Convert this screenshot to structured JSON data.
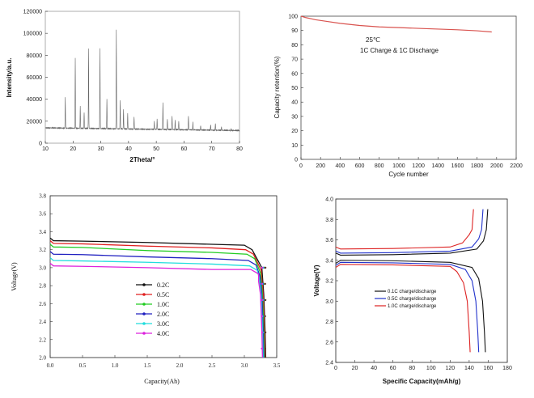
{
  "chart_data": [
    {
      "type": "line",
      "xlabel": "2Theta/°",
      "ylabel": "Intensity/a.u.",
      "xlim": [
        10,
        80
      ],
      "ylim": [
        0,
        120000
      ],
      "xticks": [
        "10",
        "20",
        "30",
        "40",
        "50",
        "60",
        "70",
        "80"
      ],
      "yticks": [
        "0",
        "20000",
        "40000",
        "60000",
        "80000",
        "100000",
        "120000"
      ],
      "baseline_start": 14000,
      "baseline_end": 11500,
      "peaks": [
        {
          "x": 17.2,
          "y": 42000
        },
        {
          "x": 20.8,
          "y": 78000
        },
        {
          "x": 22.6,
          "y": 34000
        },
        {
          "x": 24.0,
          "y": 28000
        },
        {
          "x": 25.6,
          "y": 86000
        },
        {
          "x": 29.7,
          "y": 86000
        },
        {
          "x": 32.2,
          "y": 40000
        },
        {
          "x": 35.6,
          "y": 103000
        },
        {
          "x": 37.0,
          "y": 39000
        },
        {
          "x": 38.2,
          "y": 31000
        },
        {
          "x": 39.7,
          "y": 27000
        },
        {
          "x": 42.0,
          "y": 24000
        },
        {
          "x": 49.3,
          "y": 20000
        },
        {
          "x": 50.3,
          "y": 22000
        },
        {
          "x": 52.4,
          "y": 37000
        },
        {
          "x": 54.0,
          "y": 22000
        },
        {
          "x": 55.7,
          "y": 25000
        },
        {
          "x": 56.8,
          "y": 21000
        },
        {
          "x": 58.1,
          "y": 20000
        },
        {
          "x": 61.6,
          "y": 25000
        },
        {
          "x": 63.2,
          "y": 19000
        },
        {
          "x": 66.0,
          "y": 16000
        },
        {
          "x": 69.6,
          "y": 17000
        },
        {
          "x": 71.3,
          "y": 18000
        },
        {
          "x": 73.5,
          "y": 15000
        },
        {
          "x": 77.0,
          "y": 13500
        }
      ]
    },
    {
      "type": "line",
      "xlabel": "Cycle number",
      "ylabel": "Capacity retention(%)",
      "xlim": [
        0,
        2200
      ],
      "ylim": [
        0,
        100
      ],
      "xticks": [
        "0",
        "200",
        "400",
        "600",
        "800",
        "1000",
        "1200",
        "1400",
        "1600",
        "1800",
        "2000",
        "2200"
      ],
      "yticks": [
        "0",
        "10",
        "20",
        "30",
        "40",
        "50",
        "60",
        "70",
        "80",
        "90",
        "100"
      ],
      "annotation_temp": "25℃",
      "annotation_rate": "1C Charge & 1C Discharge",
      "series": [
        {
          "x": [
            0,
            50,
            150,
            250,
            400,
            600,
            800,
            1000,
            1200,
            1400,
            1600,
            1800,
            1950
          ],
          "y": [
            100,
            99,
            97.5,
            96.5,
            95,
            93.5,
            92.5,
            92,
            91.5,
            91,
            90.5,
            89.8,
            89
          ]
        }
      ]
    },
    {
      "type": "line",
      "xlabel": "Capacity(Ah)",
      "ylabel": "Voltage(V)",
      "xlim": [
        0,
        3.5
      ],
      "ylim": [
        2.0,
        3.8
      ],
      "xticks": [
        "0.0",
        "0.5",
        "1.0",
        "1.5",
        "2.0",
        "2.5",
        "3.0",
        "3.5"
      ],
      "yticks": [
        "2.0",
        "2.2",
        "2.4",
        "2.6",
        "2.8",
        "3.0",
        "3.2",
        "3.4",
        "3.6",
        "3.8"
      ],
      "series": [
        {
          "name": "0.2C",
          "color": "#111111",
          "plateau": [
            3.3,
            3.28,
            3.25
          ],
          "end_cap": 3.33
        },
        {
          "name": "0.5C",
          "color": "#e02020",
          "plateau": [
            3.27,
            3.24,
            3.2
          ],
          "end_cap": 3.32
        },
        {
          "name": "1.0C",
          "color": "#22cc22",
          "plateau": [
            3.23,
            3.19,
            3.15
          ],
          "end_cap": 3.31
        },
        {
          "name": "2.0C",
          "color": "#2020c0",
          "plateau": [
            3.15,
            3.12,
            3.08
          ],
          "end_cap": 3.3
        },
        {
          "name": "3.0C",
          "color": "#22dddd",
          "plateau": [
            3.08,
            3.06,
            3.02
          ],
          "end_cap": 3.29
        },
        {
          "name": "4.0C",
          "color": "#dd22dd",
          "plateau": [
            3.02,
            3.0,
            2.98
          ],
          "end_cap": 3.28
        }
      ]
    },
    {
      "type": "line",
      "xlabel": "Specific Capacity(mAh/g)",
      "ylabel": "Voltage(V)",
      "xlim": [
        0,
        180
      ],
      "ylim": [
        2.4,
        4.0
      ],
      "xticks": [
        "0",
        "20",
        "40",
        "60",
        "80",
        "100",
        "120",
        "140",
        "160",
        "180"
      ],
      "yticks": [
        "2.4",
        "2.6",
        "2.8",
        "3.0",
        "3.2",
        "3.4",
        "3.6",
        "3.8",
        "4.0"
      ],
      "series": [
        {
          "name": "0.1C charge/discharge",
          "color": "#111111",
          "charge_plateau": 3.45,
          "charge_end": 160,
          "discharge_plateau": 3.4,
          "discharge_end": 157
        },
        {
          "name": "0.5C charge/discharge",
          "color": "#2233cc",
          "charge_plateau": 3.47,
          "charge_end": 155,
          "discharge_plateau": 3.38,
          "discharge_end": 150
        },
        {
          "name": "1.0C charge/discharge",
          "color": "#dd2222",
          "charge_plateau": 3.51,
          "charge_end": 145,
          "discharge_plateau": 3.36,
          "discharge_end": 141
        }
      ]
    }
  ]
}
